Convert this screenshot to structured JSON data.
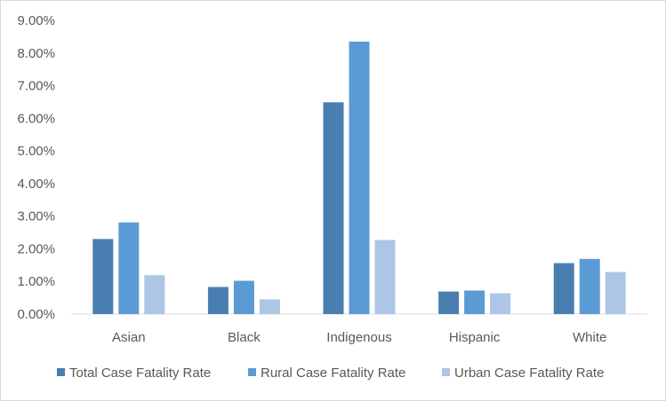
{
  "chart_data": {
    "type": "bar",
    "title": "",
    "xlabel": "",
    "ylabel": "",
    "categories": [
      "Asian",
      "Black",
      "Indigenous",
      "Hispanic",
      "White"
    ],
    "series": [
      {
        "name": "Total Case Fatality Rate",
        "color": "#4a7eb0",
        "values": [
          2.3,
          0.83,
          6.49,
          0.69,
          1.56
        ]
      },
      {
        "name": "Rural Case Fatality Rate",
        "color": "#5b9bd5",
        "values": [
          2.81,
          1.02,
          8.35,
          0.72,
          1.69
        ]
      },
      {
        "name": "Urban Case Fatality Rate",
        "color": "#aec6e6",
        "values": [
          1.19,
          0.45,
          2.27,
          0.64,
          1.29
        ]
      }
    ],
    "y_ticks": [
      "0.00%",
      "1.00%",
      "2.00%",
      "3.00%",
      "4.00%",
      "5.00%",
      "6.00%",
      "7.00%",
      "8.00%",
      "9.00%"
    ],
    "ylim": [
      0,
      9
    ],
    "y_unit": "%",
    "grid": false,
    "legend_position": "bottom"
  }
}
